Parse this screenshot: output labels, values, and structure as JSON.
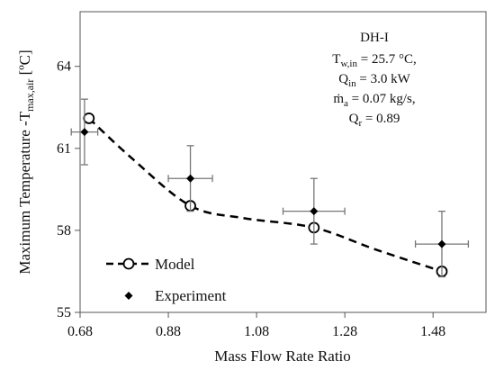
{
  "chart_data": {
    "type": "scatter",
    "xlabel": "Mass Flow Rate Ratio",
    "ylabel_main": "Maximum Temperature -T",
    "ylabel_sub": "max,air",
    "ylabel_unit": "[ºC]",
    "xlim": [
      0.68,
      1.6
    ],
    "ylim": [
      55,
      66
    ],
    "xticks": [
      0.68,
      0.88,
      1.08,
      1.28,
      1.48
    ],
    "yticks": [
      55,
      58,
      61,
      64
    ],
    "xtick_labels": [
      "0.68",
      "0.88",
      "1.08",
      "1.28",
      "1.48"
    ],
    "ytick_labels": [
      "55",
      "58",
      "61",
      "64"
    ],
    "grid": false,
    "annotation": {
      "title": "DH-I",
      "tw_pre": "T",
      "tw_sub": "w,in",
      "tw_val": " = 25.7 °C,",
      "q_pre": "Q",
      "q_sub": "in",
      "q_val": " = 3.0 kW",
      "ma_pre": "ṁ",
      "ma_sub": "a",
      "ma_val": " = 0.07 kg/s,",
      "qr_pre": "Q",
      "qr_sub": "r",
      "qr_val": " = 0.89"
    },
    "series": [
      {
        "name": "Model",
        "style": "dashed line with open circle markers",
        "color": "#000000",
        "x": [
          0.7,
          0.93,
          1.21,
          1.5
        ],
        "y": [
          62.1,
          58.9,
          58.1,
          56.5
        ],
        "curve": [
          [
            0.7,
            62.1
          ],
          [
            0.8,
            60.6
          ],
          [
            0.93,
            58.9
          ],
          [
            1.05,
            58.45
          ],
          [
            1.21,
            58.1
          ],
          [
            1.35,
            57.3
          ],
          [
            1.5,
            56.5
          ]
        ]
      },
      {
        "name": "Experiment",
        "style": "filled diamond markers with x and y error bars",
        "color": "#000000",
        "x": [
          0.69,
          0.93,
          1.21,
          1.5
        ],
        "y": [
          61.6,
          59.9,
          58.7,
          57.5
        ],
        "xerr": [
          0.03,
          0.05,
          0.07,
          0.06
        ],
        "yerr": [
          1.2,
          1.2,
          1.2,
          1.2
        ]
      }
    ],
    "legend_placement": "lower-left"
  }
}
